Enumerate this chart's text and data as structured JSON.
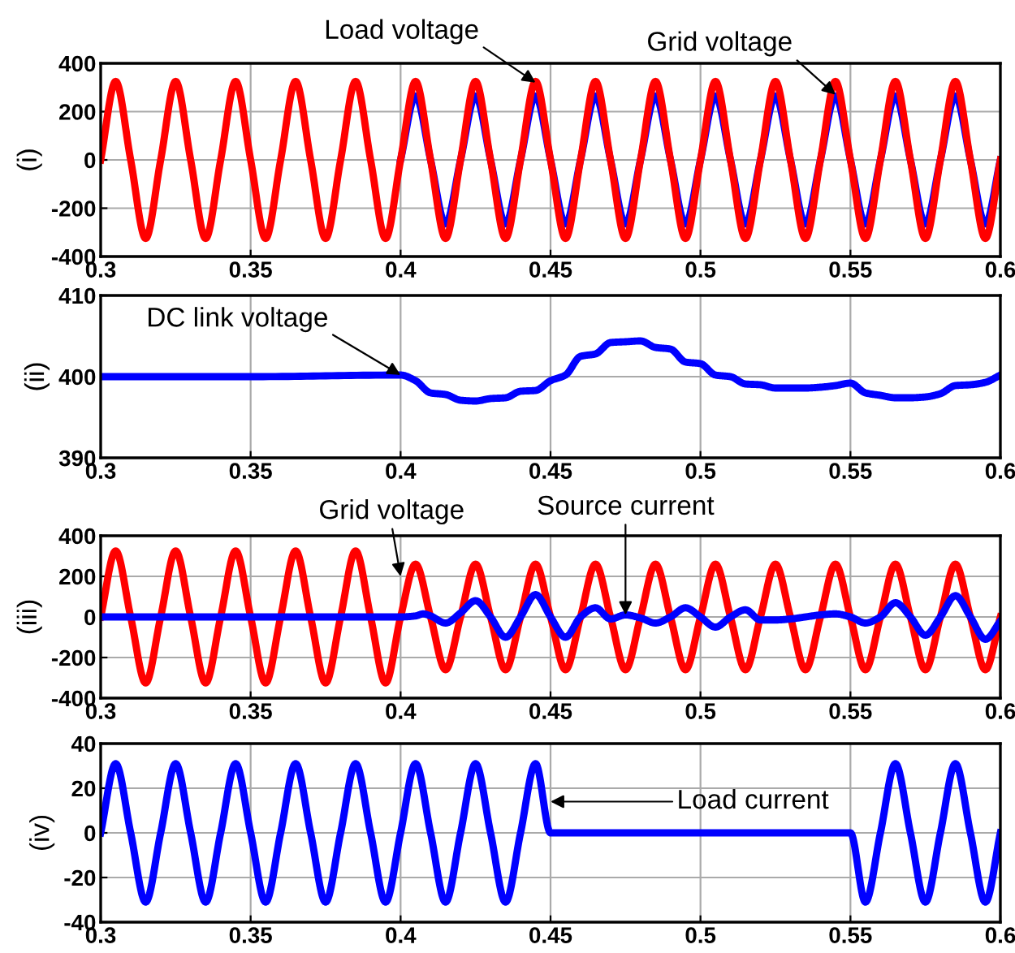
{
  "chart_data": [
    {
      "type": "line",
      "ylabel": "(i)",
      "xlim": [
        0.3,
        0.6
      ],
      "xticks": [
        0.3,
        0.35,
        0.4,
        0.45,
        0.5,
        0.55,
        0.6
      ],
      "ylim": [
        -400,
        400
      ],
      "yticks": [
        -400,
        -200,
        0,
        200,
        400
      ],
      "grid": true,
      "marker": "none",
      "line_style": "solid",
      "series": [
        {
          "color": "#0000ff",
          "x": [
            0.4,
            0.405,
            0.41,
            0.415,
            0.42,
            0.425,
            0.43,
            0.435,
            0.44,
            0.445,
            0.45,
            0.455,
            0.46,
            0.465,
            0.47,
            0.475,
            0.48,
            0.485,
            0.49,
            0.495,
            0.5,
            0.505,
            0.51,
            0.515,
            0.52,
            0.525,
            0.53,
            0.535,
            0.54,
            0.545,
            0.55,
            0.555,
            0.56,
            0.565,
            0.57,
            0.575,
            0.58,
            0.585,
            0.59,
            0.595,
            0.6
          ],
          "values": [
            0,
            265,
            0,
            -265,
            0,
            265,
            0,
            -265,
            0,
            265,
            0,
            -265,
            0,
            265,
            0,
            -265,
            0,
            265,
            0,
            -265,
            0,
            265,
            0,
            -265,
            0,
            265,
            0,
            -265,
            0,
            265,
            0,
            -265,
            0,
            265,
            0,
            -265,
            0,
            265,
            0,
            -265,
            0
          ]
        },
        {
          "color": "#ff0000",
          "x": [
            0.3,
            0.305,
            0.31,
            0.315,
            0.32,
            0.325,
            0.33,
            0.335,
            0.34,
            0.345,
            0.35,
            0.355,
            0.36,
            0.365,
            0.37,
            0.375,
            0.38,
            0.385,
            0.39,
            0.395,
            0.4,
            0.405,
            0.41,
            0.415,
            0.42,
            0.425,
            0.43,
            0.435,
            0.44,
            0.445,
            0.45,
            0.455,
            0.46,
            0.465,
            0.47,
            0.475,
            0.48,
            0.485,
            0.49,
            0.495,
            0.5,
            0.505,
            0.51,
            0.515,
            0.52,
            0.525,
            0.53,
            0.535,
            0.54,
            0.545,
            0.55,
            0.555,
            0.56,
            0.565,
            0.57,
            0.575,
            0.58,
            0.585,
            0.59,
            0.595,
            0.6
          ],
          "values": [
            0,
            325,
            0,
            -325,
            0,
            325,
            0,
            -325,
            0,
            325,
            0,
            -325,
            0,
            325,
            0,
            -325,
            0,
            325,
            0,
            -325,
            0,
            325,
            0,
            -325,
            0,
            325,
            0,
            -325,
            0,
            325,
            0,
            -325,
            0,
            325,
            0,
            -325,
            0,
            325,
            0,
            -325,
            0,
            325,
            0,
            -325,
            0,
            325,
            0,
            -325,
            0,
            325,
            0,
            -325,
            0,
            325,
            0,
            -325,
            0,
            325,
            0,
            -325,
            0
          ]
        }
      ],
      "annotations": [
        {
          "text": "Load voltage",
          "x": 0.445,
          "y": 320
        },
        {
          "text": "Grid voltage",
          "x": 0.545,
          "y": 270
        }
      ]
    },
    {
      "type": "line",
      "ylabel": "(ii)",
      "xlim": [
        0.3,
        0.6
      ],
      "xticks": [
        0.3,
        0.35,
        0.4,
        0.45,
        0.5,
        0.55,
        0.6
      ],
      "ylim": [
        390,
        410
      ],
      "yticks": [
        390,
        400,
        410
      ],
      "grid": true,
      "marker": "none",
      "line_style": "solid",
      "series": [
        {
          "color": "#0000ff",
          "x": [
            0.3,
            0.35,
            0.4,
            0.405,
            0.41,
            0.415,
            0.42,
            0.425,
            0.43,
            0.435,
            0.44,
            0.445,
            0.45,
            0.455,
            0.46,
            0.465,
            0.47,
            0.475,
            0.48,
            0.485,
            0.49,
            0.495,
            0.5,
            0.505,
            0.51,
            0.515,
            0.52,
            0.525,
            0.53,
            0.535,
            0.54,
            0.545,
            0.55,
            0.555,
            0.56,
            0.565,
            0.57,
            0.575,
            0.58,
            0.585,
            0.59,
            0.595,
            0.6
          ],
          "values": [
            400,
            400,
            400.2,
            399.5,
            398,
            397.8,
            397.1,
            397,
            397.3,
            397.4,
            398.2,
            398.3,
            399.5,
            400.2,
            402.5,
            402.8,
            404.2,
            404.3,
            404.4,
            403.6,
            403.4,
            401.8,
            401.6,
            400.2,
            400,
            399.1,
            399,
            398.6,
            398.6,
            398.6,
            398.7,
            398.9,
            399.2,
            398,
            397.7,
            397.4,
            397.4,
            397.5,
            397.9,
            398.9,
            399,
            399.3,
            400.2
          ]
        }
      ],
      "annotations": [
        {
          "text": "DC link voltage",
          "x": 0.4,
          "y": 400.2
        }
      ]
    },
    {
      "type": "line",
      "ylabel": "(iii)",
      "xlim": [
        0.3,
        0.6
      ],
      "xticks": [
        0.3,
        0.35,
        0.4,
        0.45,
        0.5,
        0.55,
        0.6
      ],
      "ylim": [
        -400,
        400
      ],
      "yticks": [
        -400,
        -200,
        0,
        200,
        400
      ],
      "grid": true,
      "marker": "none",
      "line_style": "solid",
      "series": [
        {
          "color": "#ff0000",
          "x": [
            0.3,
            0.305,
            0.31,
            0.315,
            0.32,
            0.325,
            0.33,
            0.335,
            0.34,
            0.345,
            0.35,
            0.355,
            0.36,
            0.365,
            0.37,
            0.375,
            0.38,
            0.385,
            0.39,
            0.395,
            0.4,
            0.405,
            0.41,
            0.415,
            0.42,
            0.425,
            0.43,
            0.435,
            0.44,
            0.445,
            0.45,
            0.455,
            0.46,
            0.465,
            0.47,
            0.475,
            0.48,
            0.485,
            0.49,
            0.495,
            0.5,
            0.505,
            0.51,
            0.515,
            0.52,
            0.525,
            0.53,
            0.535,
            0.54,
            0.545,
            0.55,
            0.555,
            0.56,
            0.565,
            0.57,
            0.575,
            0.58,
            0.585,
            0.59,
            0.595,
            0.6
          ],
          "values": [
            0,
            325,
            0,
            -325,
            0,
            325,
            0,
            -325,
            0,
            325,
            0,
            -325,
            0,
            325,
            0,
            -325,
            0,
            325,
            0,
            -325,
            0,
            260,
            0,
            -260,
            0,
            260,
            0,
            -260,
            0,
            260,
            0,
            -260,
            0,
            260,
            0,
            -260,
            0,
            260,
            0,
            -260,
            0,
            260,
            0,
            -260,
            0,
            260,
            0,
            -260,
            0,
            260,
            0,
            -260,
            0,
            260,
            0,
            -260,
            0,
            260,
            0,
            -260,
            0
          ]
        },
        {
          "color": "#0000ff",
          "x": [
            0.3,
            0.35,
            0.4,
            0.405,
            0.4075,
            0.41,
            0.415,
            0.42,
            0.425,
            0.43,
            0.435,
            0.44,
            0.445,
            0.45,
            0.455,
            0.46,
            0.465,
            0.47,
            0.475,
            0.48,
            0.485,
            0.49,
            0.495,
            0.5,
            0.505,
            0.51,
            0.515,
            0.52,
            0.525,
            0.53,
            0.535,
            0.54,
            0.545,
            0.55,
            0.555,
            0.56,
            0.565,
            0.57,
            0.575,
            0.58,
            0.585,
            0.59,
            0.595,
            0.6
          ],
          "values": [
            0,
            0,
            0,
            5,
            15,
            5,
            -30,
            20,
            80,
            0,
            -100,
            0,
            110,
            0,
            -100,
            0,
            45,
            -10,
            10,
            -5,
            -30,
            0,
            45,
            0,
            -50,
            0,
            35,
            -15,
            -15,
            -10,
            0,
            10,
            15,
            0,
            -30,
            0,
            70,
            0,
            -90,
            0,
            105,
            0,
            -110,
            -20
          ]
        }
      ],
      "annotations": [
        {
          "text": "Grid voltage",
          "x": 0.4,
          "y": 200
        },
        {
          "text": "Source current",
          "x": 0.475,
          "y": 10
        }
      ]
    },
    {
      "type": "line",
      "ylabel": "(iv)",
      "xlim": [
        0.3,
        0.6
      ],
      "xticks": [
        0.3,
        0.35,
        0.4,
        0.45,
        0.5,
        0.55,
        0.6
      ],
      "ylim": [
        -40,
        40
      ],
      "yticks": [
        -40,
        -20,
        0,
        20,
        40
      ],
      "grid": true,
      "marker": "none",
      "line_style": "solid",
      "series": [
        {
          "color": "#0000ff",
          "x": [
            0.3,
            0.305,
            0.31,
            0.315,
            0.32,
            0.325,
            0.33,
            0.335,
            0.34,
            0.345,
            0.35,
            0.355,
            0.36,
            0.365,
            0.37,
            0.375,
            0.38,
            0.385,
            0.39,
            0.395,
            0.4,
            0.405,
            0.41,
            0.415,
            0.42,
            0.425,
            0.43,
            0.435,
            0.44,
            0.445,
            0.45,
            0.5,
            0.55,
            0.555,
            0.56,
            0.565,
            0.57,
            0.575,
            0.58,
            0.585,
            0.59,
            0.595,
            0.6
          ],
          "values": [
            0,
            31,
            0,
            -31,
            0,
            31,
            0,
            -31,
            0,
            31,
            0,
            -31,
            0,
            31,
            0,
            -31,
            0,
            31,
            0,
            -31,
            0,
            31,
            0,
            -31,
            0,
            31,
            0,
            -31,
            0,
            31,
            0,
            0,
            0,
            -31,
            0,
            31,
            0,
            -31,
            0,
            31,
            0,
            -31,
            0
          ]
        }
      ],
      "annotations": [
        {
          "text": "Load current",
          "x": 0.45,
          "y": 14
        }
      ]
    }
  ]
}
